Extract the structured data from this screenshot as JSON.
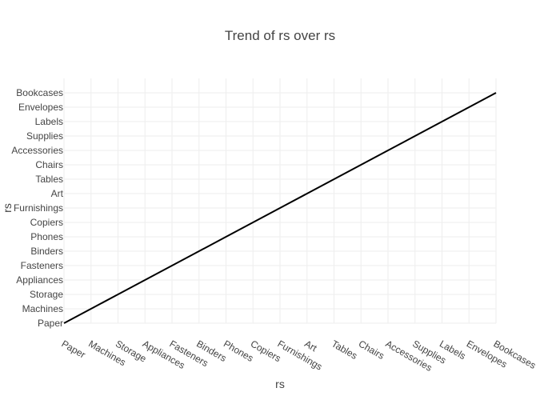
{
  "chart_data": {
    "type": "line",
    "title": "Trend of rs over rs",
    "xlabel": "rs",
    "ylabel": "rs",
    "categories": [
      "Paper",
      "Machines",
      "Storage",
      "Appliances",
      "Fasteners",
      "Binders",
      "Phones",
      "Copiers",
      "Furnishings",
      "Art",
      "Tables",
      "Chairs",
      "Accessories",
      "Supplies",
      "Labels",
      "Envelopes",
      "Bookcases"
    ],
    "x": [
      "Paper",
      "Machines",
      "Storage",
      "Appliances",
      "Fasteners",
      "Binders",
      "Phones",
      "Copiers",
      "Furnishings",
      "Art",
      "Tables",
      "Chairs",
      "Accessories",
      "Supplies",
      "Labels",
      "Envelopes",
      "Bookcases"
    ],
    "y": [
      "Paper",
      "Machines",
      "Storage",
      "Appliances",
      "Fasteners",
      "Binders",
      "Phones",
      "Copiers",
      "Furnishings",
      "Art",
      "Tables",
      "Chairs",
      "Accessories",
      "Supplies",
      "Labels",
      "Envelopes",
      "Bookcases"
    ],
    "grid": true,
    "legend": false,
    "line_color": "#000000"
  }
}
